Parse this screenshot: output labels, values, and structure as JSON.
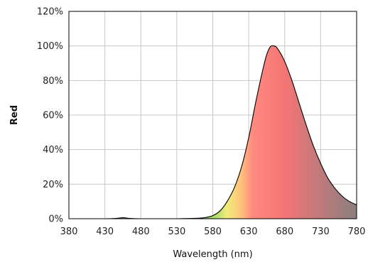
{
  "chart_data": {
    "type": "area",
    "title": "",
    "xlabel": "Wavelength (nm)",
    "ylabel": "Red",
    "xlim": [
      380,
      780
    ],
    "ylim": [
      0,
      1.2
    ],
    "x_ticks": [
      380,
      430,
      480,
      530,
      580,
      630,
      680,
      730,
      780
    ],
    "x_tick_labels": [
      "380",
      "430",
      "480",
      "530",
      "580",
      "630",
      "680",
      "730",
      "780"
    ],
    "y_ticks": [
      0,
      0.2,
      0.4,
      0.6,
      0.8,
      1.0,
      1.2
    ],
    "y_tick_labels": [
      "0%",
      "20%",
      "40%",
      "60%",
      "80%",
      "100%",
      "120%"
    ],
    "grid": true,
    "legend": "none",
    "series": [
      {
        "x": [
          380,
          400,
          430,
          445,
          455,
          465,
          480,
          530,
          560,
          570,
          580,
          590,
          600,
          610,
          620,
          630,
          640,
          650,
          655,
          660,
          665,
          670,
          680,
          690,
          700,
          710,
          720,
          730,
          740,
          750,
          760,
          770,
          780
        ],
        "y": [
          0,
          0,
          0,
          0.002,
          0.006,
          0.002,
          0,
          0,
          0.003,
          0.007,
          0.018,
          0.045,
          0.1,
          0.18,
          0.3,
          0.47,
          0.68,
          0.87,
          0.95,
          0.995,
          1.0,
          0.985,
          0.91,
          0.8,
          0.67,
          0.54,
          0.42,
          0.32,
          0.235,
          0.175,
          0.13,
          0.1,
          0.08
        ]
      }
    ],
    "fill_gradient": [
      {
        "wavelength": 580,
        "color": "#9fd86a"
      },
      {
        "wavelength": 600,
        "color": "#f2ec7a"
      },
      {
        "wavelength": 620,
        "color": "#ffc07a"
      },
      {
        "wavelength": 635,
        "color": "#ff8a80"
      },
      {
        "wavelength": 680,
        "color": "#f47575"
      },
      {
        "wavelength": 780,
        "color": "#8a7f80"
      }
    ]
  }
}
